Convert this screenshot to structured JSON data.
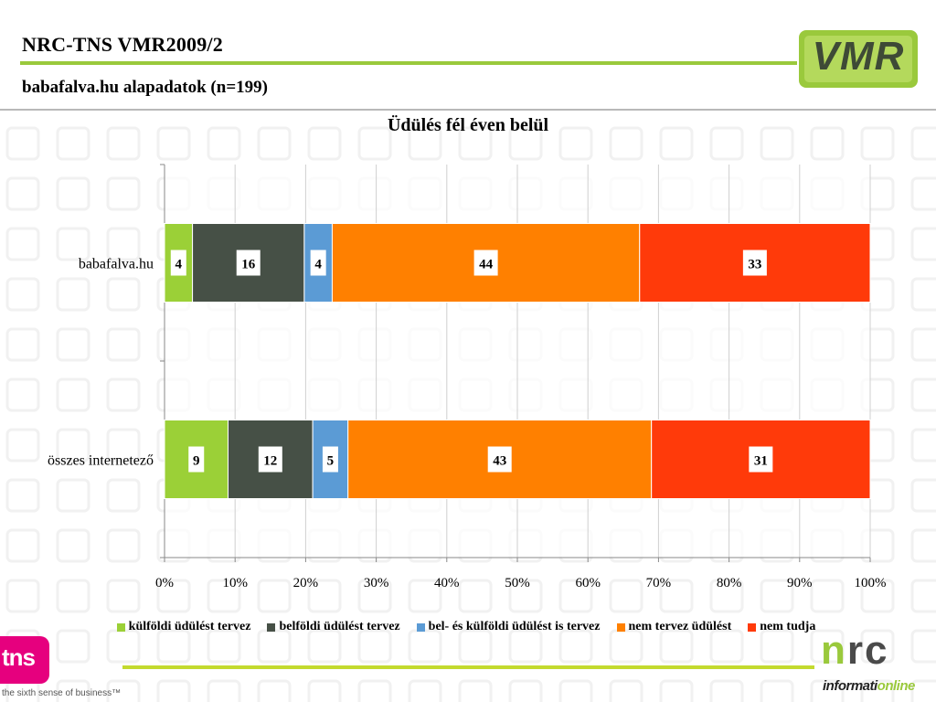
{
  "header": {
    "title": "NRC-TNS VMR2009/2",
    "subtitle": "babafalva.hu alapadatok (n=199)"
  },
  "logos": {
    "vmr": "VMR",
    "tns": "tns",
    "tns_tagline": "the sixth sense of business™",
    "nrc_n": "n",
    "nrc_rc": "rc",
    "nrc_sub_prefix": "informati",
    "nrc_sub_suffix": "online"
  },
  "chart_data": {
    "type": "bar",
    "orientation": "horizontal",
    "stacked": "percent",
    "title": "Üdülés fél éven belül",
    "categories": [
      "babafalva.hu",
      "összes internetező"
    ],
    "series": [
      {
        "name": "külföldi üdülést tervez",
        "color": "#9bd037",
        "values": [
          4,
          9
        ]
      },
      {
        "name": "belföldi üdülést tervez",
        "color": "#465046",
        "values": [
          16,
          12
        ]
      },
      {
        "name": "bel- és külföldi üdülést is tervez",
        "color": "#5b9bd5",
        "values": [
          4,
          5
        ]
      },
      {
        "name": "nem tervez üdülést",
        "color": "#ff8000",
        "values": [
          44,
          43
        ]
      },
      {
        "name": "nem tudja",
        "color": "#ff3a0a",
        "values": [
          33,
          31
        ]
      }
    ],
    "xlim": [
      0,
      100
    ],
    "x_ticks": [
      "0%",
      "10%",
      "20%",
      "30%",
      "40%",
      "50%",
      "60%",
      "70%",
      "80%",
      "90%",
      "100%"
    ],
    "grid": true,
    "legend": "bottom"
  }
}
